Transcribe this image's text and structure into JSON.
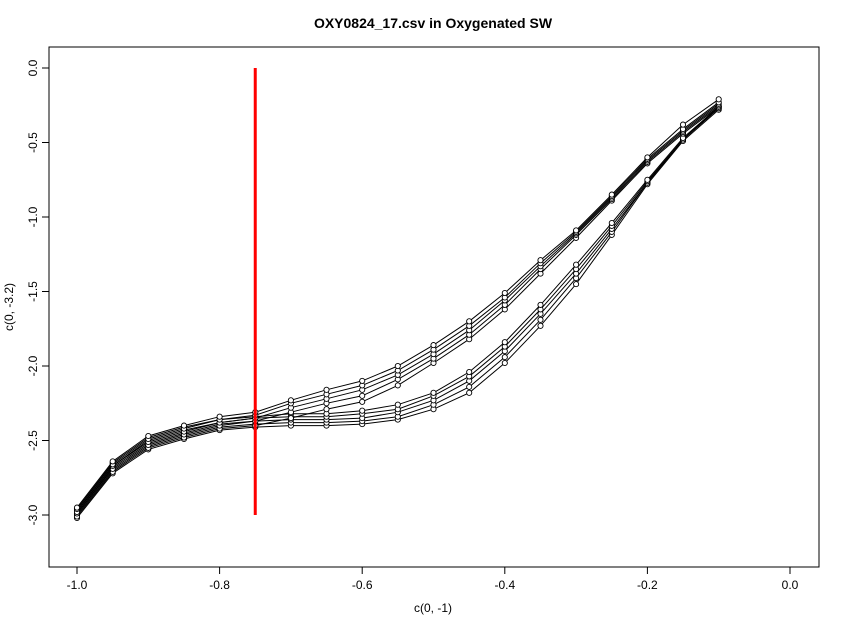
{
  "chart_data": {
    "type": "line",
    "title": "OXY0824_17.csv in Oxygenated SW",
    "xlabel": "c(0, -1)",
    "ylabel": "c(0, -3.2)",
    "xlim": [
      -1.0,
      0.0
    ],
    "ylim": [
      -3.2,
      0.0
    ],
    "x_ticks": [
      -1.0,
      -0.8,
      -0.6,
      -0.4,
      -0.2,
      0.0
    ],
    "x_tick_labels": [
      "-1.0",
      "-0.8",
      "-0.6",
      "-0.4",
      "-0.2",
      "0.0"
    ],
    "y_ticks": [
      0.0,
      -0.5,
      -1.0,
      -1.5,
      -2.0,
      -2.5,
      -3.0
    ],
    "y_tick_labels": [
      "0.0",
      "-0.5",
      "-1.0",
      "-1.5",
      "-2.0",
      "-2.5",
      "-3.0"
    ],
    "grid": false,
    "series_color": "#000000",
    "marker": "open-circle",
    "x": [
      -1.0,
      -0.95,
      -0.9,
      -0.85,
      -0.8,
      -0.75,
      -0.7,
      -0.65,
      -0.6,
      -0.55,
      -0.5,
      -0.45,
      -0.4,
      -0.35,
      -0.3,
      -0.25,
      -0.2,
      -0.15,
      -0.1
    ],
    "series": [
      {
        "values": [
          -3.02,
          -2.72,
          -2.56,
          -2.49,
          -2.43,
          -2.41,
          -2.4,
          -2.4,
          -2.39,
          -2.36,
          -2.29,
          -2.18,
          -1.98,
          -1.73,
          -1.45,
          -1.12,
          -0.78,
          -0.49,
          -0.28
        ]
      },
      {
        "values": [
          -3.0,
          -2.7,
          -2.54,
          -2.47,
          -2.41,
          -2.39,
          -2.38,
          -2.38,
          -2.37,
          -2.34,
          -2.26,
          -2.14,
          -1.94,
          -1.69,
          -1.41,
          -1.1,
          -0.77,
          -0.48,
          -0.27
        ]
      },
      {
        "values": [
          -2.99,
          -2.68,
          -2.52,
          -2.45,
          -2.39,
          -2.37,
          -2.36,
          -2.36,
          -2.35,
          -2.31,
          -2.23,
          -2.1,
          -1.9,
          -1.65,
          -1.38,
          -1.08,
          -0.77,
          -0.48,
          -0.27
        ]
      },
      {
        "values": [
          -2.97,
          -2.67,
          -2.5,
          -2.43,
          -2.38,
          -2.35,
          -2.34,
          -2.34,
          -2.32,
          -2.29,
          -2.2,
          -2.07,
          -1.87,
          -1.62,
          -1.35,
          -1.06,
          -0.76,
          -0.48,
          -0.26
        ]
      },
      {
        "values": [
          -2.96,
          -2.65,
          -2.48,
          -2.41,
          -2.36,
          -2.34,
          -2.32,
          -2.32,
          -2.3,
          -2.26,
          -2.18,
          -2.04,
          -1.84,
          -1.59,
          -1.32,
          -1.04,
          -0.75,
          -0.47,
          -0.26
        ]
      },
      {
        "values": [
          -3.01,
          -2.71,
          -2.55,
          -2.48,
          -2.42,
          -2.4,
          -2.35,
          -2.29,
          -2.24,
          -2.13,
          -1.98,
          -1.82,
          -1.62,
          -1.38,
          -1.14,
          -0.89,
          -0.64,
          -0.44,
          -0.26
        ]
      },
      {
        "values": [
          -2.99,
          -2.69,
          -2.53,
          -2.46,
          -2.4,
          -2.37,
          -2.31,
          -2.25,
          -2.2,
          -2.09,
          -1.95,
          -1.79,
          -1.59,
          -1.35,
          -1.12,
          -0.88,
          -0.63,
          -0.43,
          -0.25
        ]
      },
      {
        "values": [
          -2.98,
          -2.67,
          -2.51,
          -2.44,
          -2.38,
          -2.35,
          -2.28,
          -2.22,
          -2.16,
          -2.06,
          -1.92,
          -1.76,
          -1.56,
          -1.33,
          -1.11,
          -0.87,
          -0.62,
          -0.42,
          -0.24
        ]
      },
      {
        "values": [
          -2.96,
          -2.66,
          -2.49,
          -2.42,
          -2.36,
          -2.33,
          -2.25,
          -2.19,
          -2.13,
          -2.03,
          -1.89,
          -1.73,
          -1.54,
          -1.31,
          -1.1,
          -0.86,
          -0.61,
          -0.41,
          -0.23
        ]
      },
      {
        "values": [
          -2.95,
          -2.64,
          -2.47,
          -2.4,
          -2.34,
          -2.31,
          -2.23,
          -2.16,
          -2.1,
          -2.0,
          -1.86,
          -1.7,
          -1.51,
          -1.29,
          -1.09,
          -0.85,
          -0.6,
          -0.38,
          -0.21
        ]
      }
    ],
    "vline": {
      "x": -0.75,
      "y_range": [
        -3.0,
        0.0
      ],
      "color": "#ff0000"
    }
  }
}
